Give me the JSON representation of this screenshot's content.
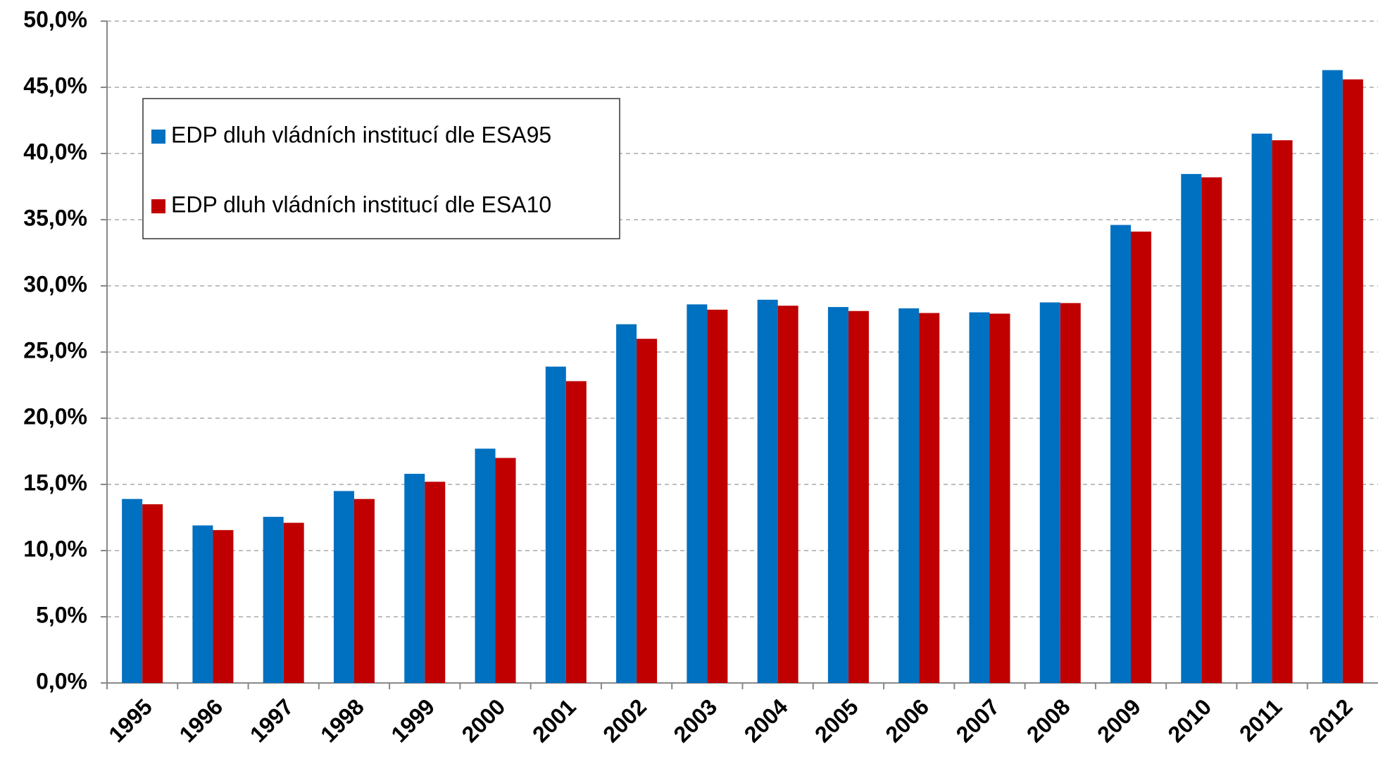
{
  "chart_data": {
    "type": "bar",
    "categories": [
      "1995",
      "1996",
      "1997",
      "1998",
      "1999",
      "2000",
      "2001",
      "2002",
      "2003",
      "2004",
      "2005",
      "2006",
      "2007",
      "2008",
      "2009",
      "2010",
      "2011",
      "2012"
    ],
    "series": [
      {
        "name": "EDP dluh vládních institucí dle ESA95",
        "color": "#0070c0",
        "values": [
          13.9,
          11.9,
          12.55,
          14.5,
          15.8,
          17.7,
          23.9,
          27.1,
          28.6,
          28.95,
          28.4,
          28.3,
          28.0,
          28.75,
          34.6,
          38.45,
          41.5,
          46.3
        ]
      },
      {
        "name": "EDP dluh vládních institucí dle ESA10",
        "color": "#c00000",
        "values": [
          13.5,
          11.55,
          12.1,
          13.9,
          15.2,
          17.0,
          22.8,
          26.0,
          28.2,
          28.5,
          28.1,
          27.95,
          27.9,
          28.7,
          34.1,
          38.2,
          41.0,
          45.6
        ]
      }
    ],
    "ylim": [
      0,
      50
    ],
    "yticks": [
      {
        "value": 0,
        "label": "0,0%"
      },
      {
        "value": 5,
        "label": "5,0%"
      },
      {
        "value": 10,
        "label": "10,0%"
      },
      {
        "value": 15,
        "label": "15,0%"
      },
      {
        "value": 20,
        "label": "20,0%"
      },
      {
        "value": 25,
        "label": "25,0%"
      },
      {
        "value": 30,
        "label": "30,0%"
      },
      {
        "value": 35,
        "label": "35,0%"
      },
      {
        "value": 40,
        "label": "40,0%"
      },
      {
        "value": 45,
        "label": "45,0%"
      },
      {
        "value": 50,
        "label": "50,0%"
      }
    ],
    "grid": true,
    "legend": "upper left"
  }
}
